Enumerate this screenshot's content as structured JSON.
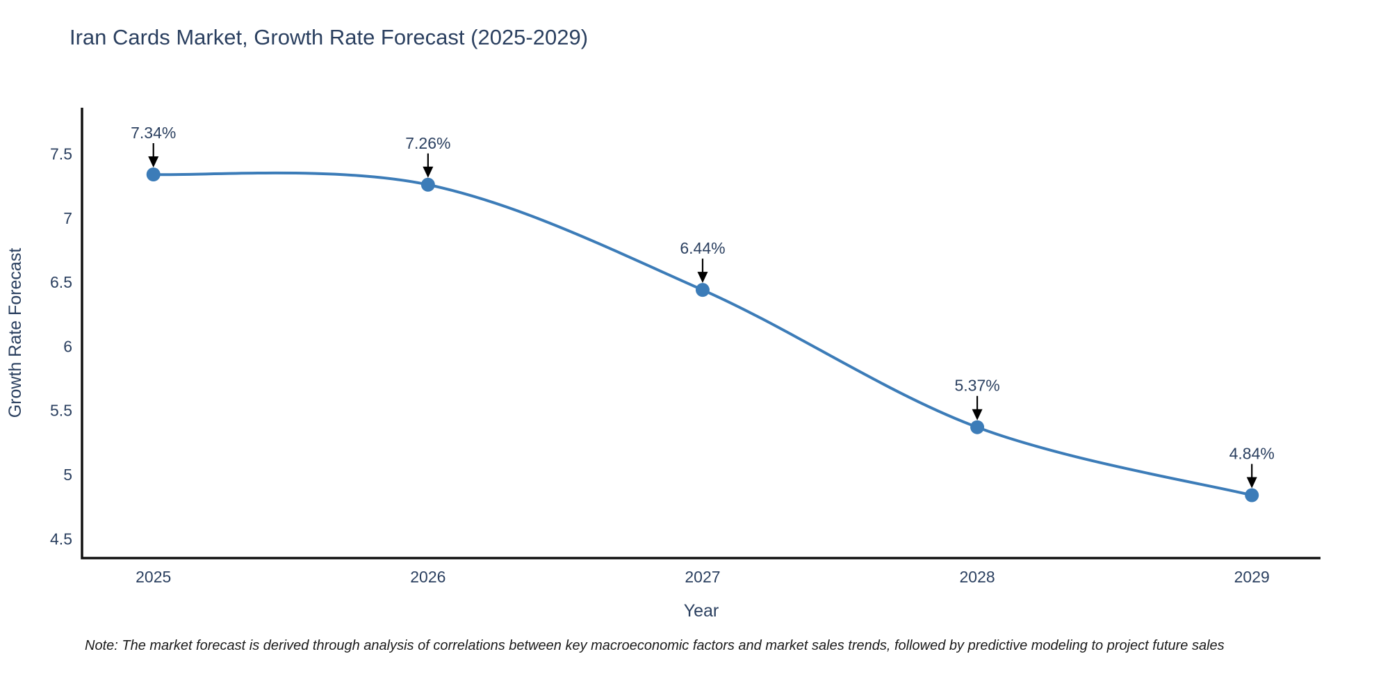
{
  "page": {
    "background": "#ffffff"
  },
  "chart_data": {
    "type": "line",
    "title": "Iran Cards Market, Growth Rate Forecast (2025-2029)",
    "xlabel": "Year",
    "ylabel": "Growth Rate Forecast",
    "x": [
      2025,
      2026,
      2027,
      2028,
      2029
    ],
    "series": [
      {
        "name": "Growth Rate Forecast",
        "values": [
          7.34,
          7.26,
          6.44,
          5.37,
          4.84
        ]
      }
    ],
    "point_labels": [
      "7.34%",
      "7.26%",
      "6.44%",
      "5.37%",
      "4.84%"
    ],
    "xtick_labels": [
      "2025",
      "2026",
      "2027",
      "2028",
      "2029"
    ],
    "ytick_values": [
      7.5,
      7.0,
      6.5,
      6.0,
      5.5,
      5.0,
      4.5
    ],
    "ytick_labels": [
      "7.5",
      "7",
      "6.5",
      "6",
      "5.5",
      "5",
      "4.5"
    ],
    "xlim": [
      2024.74,
      2029.25
    ],
    "ylim": [
      4.35,
      7.86
    ],
    "grid": false,
    "legend": false,
    "line_shape": "spline",
    "colors": {
      "line": "#3c7cb8",
      "marker": "#3c7cb8",
      "axis": "#111111",
      "tick_text": "#2a3f5f",
      "annotation_text": "#2a3f5f",
      "arrow": "#000000"
    }
  },
  "note": {
    "text": "Note: The market forecast is derived through analysis of correlations between key macroeconomic factors and market sales trends, followed by predictive modeling to project future sales"
  }
}
